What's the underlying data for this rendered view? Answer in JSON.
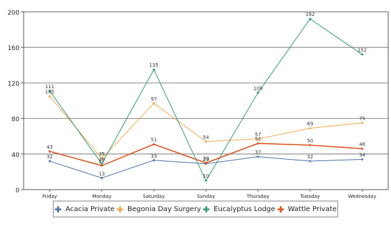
{
  "chart_data": {
    "type": "line",
    "title": "",
    "xlabel": "",
    "ylabel": "",
    "categories": [
      "Friday",
      "Monday",
      "Saturday",
      "Sunday",
      "Thursday",
      "Tuesday",
      "Wednesday"
    ],
    "ylim": [
      0,
      200
    ],
    "yticks": [
      0,
      40,
      80,
      120,
      160,
      200
    ],
    "grid": true,
    "legend_position": "bottom",
    "series": [
      {
        "name": "Acacia Private",
        "color": "#4a6fa5",
        "values": [
          32,
          13,
          33,
          29,
          37,
          32,
          34
        ]
      },
      {
        "name": "Begonia Day Surgery",
        "color": "#f2a84a",
        "values": [
          105,
          35,
          97,
          54,
          57,
          69,
          75
        ]
      },
      {
        "name": "Eucalyptus Lodge",
        "color": "#2e9a78",
        "values": [
          111,
          29,
          135,
          10,
          109,
          192,
          152
        ]
      },
      {
        "name": "Wattle Private",
        "color": "#d9541e",
        "values": [
          43,
          27,
          51,
          30,
          52,
          50,
          46
        ]
      }
    ]
  }
}
